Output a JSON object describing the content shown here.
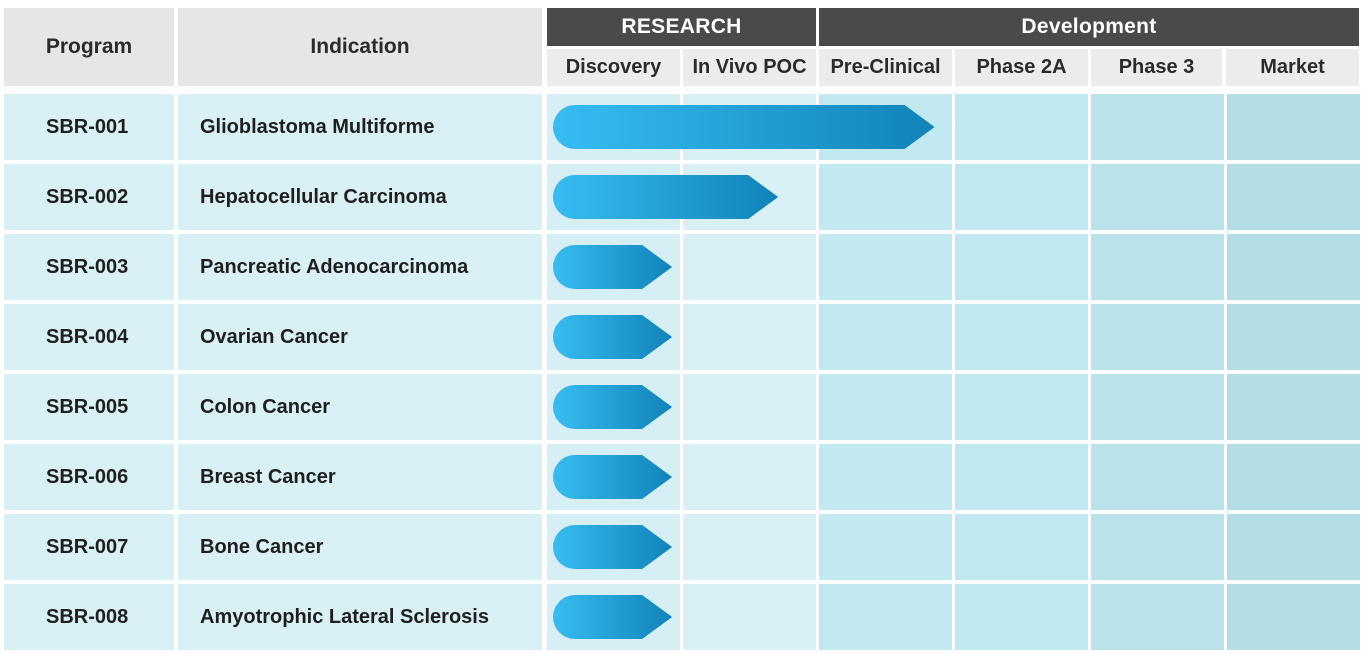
{
  "chart_data": {
    "type": "table",
    "headers": {
      "program": "Program",
      "indication": "Indication"
    },
    "groups": [
      {
        "label": "RESEARCH",
        "stages": [
          "Discovery",
          "In Vivo POC"
        ]
      },
      {
        "label": "Development",
        "stages": [
          "Pre-Clinical",
          "Phase 2A",
          "Phase 3",
          "Market"
        ]
      }
    ],
    "stages": [
      "Discovery",
      "In Vivo POC",
      "Pre-Clinical",
      "Phase 2A",
      "Phase 3",
      "Market"
    ],
    "rows": [
      {
        "program": "SBR-001",
        "indication": "Glioblastoma Multiforme",
        "progress": 2.85
      },
      {
        "program": "SBR-002",
        "indication": "Hepatocellular Carcinoma",
        "progress": 1.7
      },
      {
        "program": "SBR-003",
        "indication": "Pancreatic Adenocarcinoma",
        "progress": 0.92
      },
      {
        "program": "SBR-004",
        "indication": "Ovarian Cancer",
        "progress": 0.92
      },
      {
        "program": "SBR-005",
        "indication": "Colon Cancer",
        "progress": 0.92
      },
      {
        "program": "SBR-006",
        "indication": "Breast Cancer",
        "progress": 0.92
      },
      {
        "program": "SBR-007",
        "indication": "Bone Cancer",
        "progress": 0.92
      },
      {
        "program": "SBR-008",
        "indication": "Amyotrophic Lateral Sclerosis",
        "progress": 0.92
      }
    ],
    "colors": {
      "group_header": "#4a4a4a",
      "bar_start": "#36bdf2",
      "bar_end": "#1183b8"
    }
  }
}
